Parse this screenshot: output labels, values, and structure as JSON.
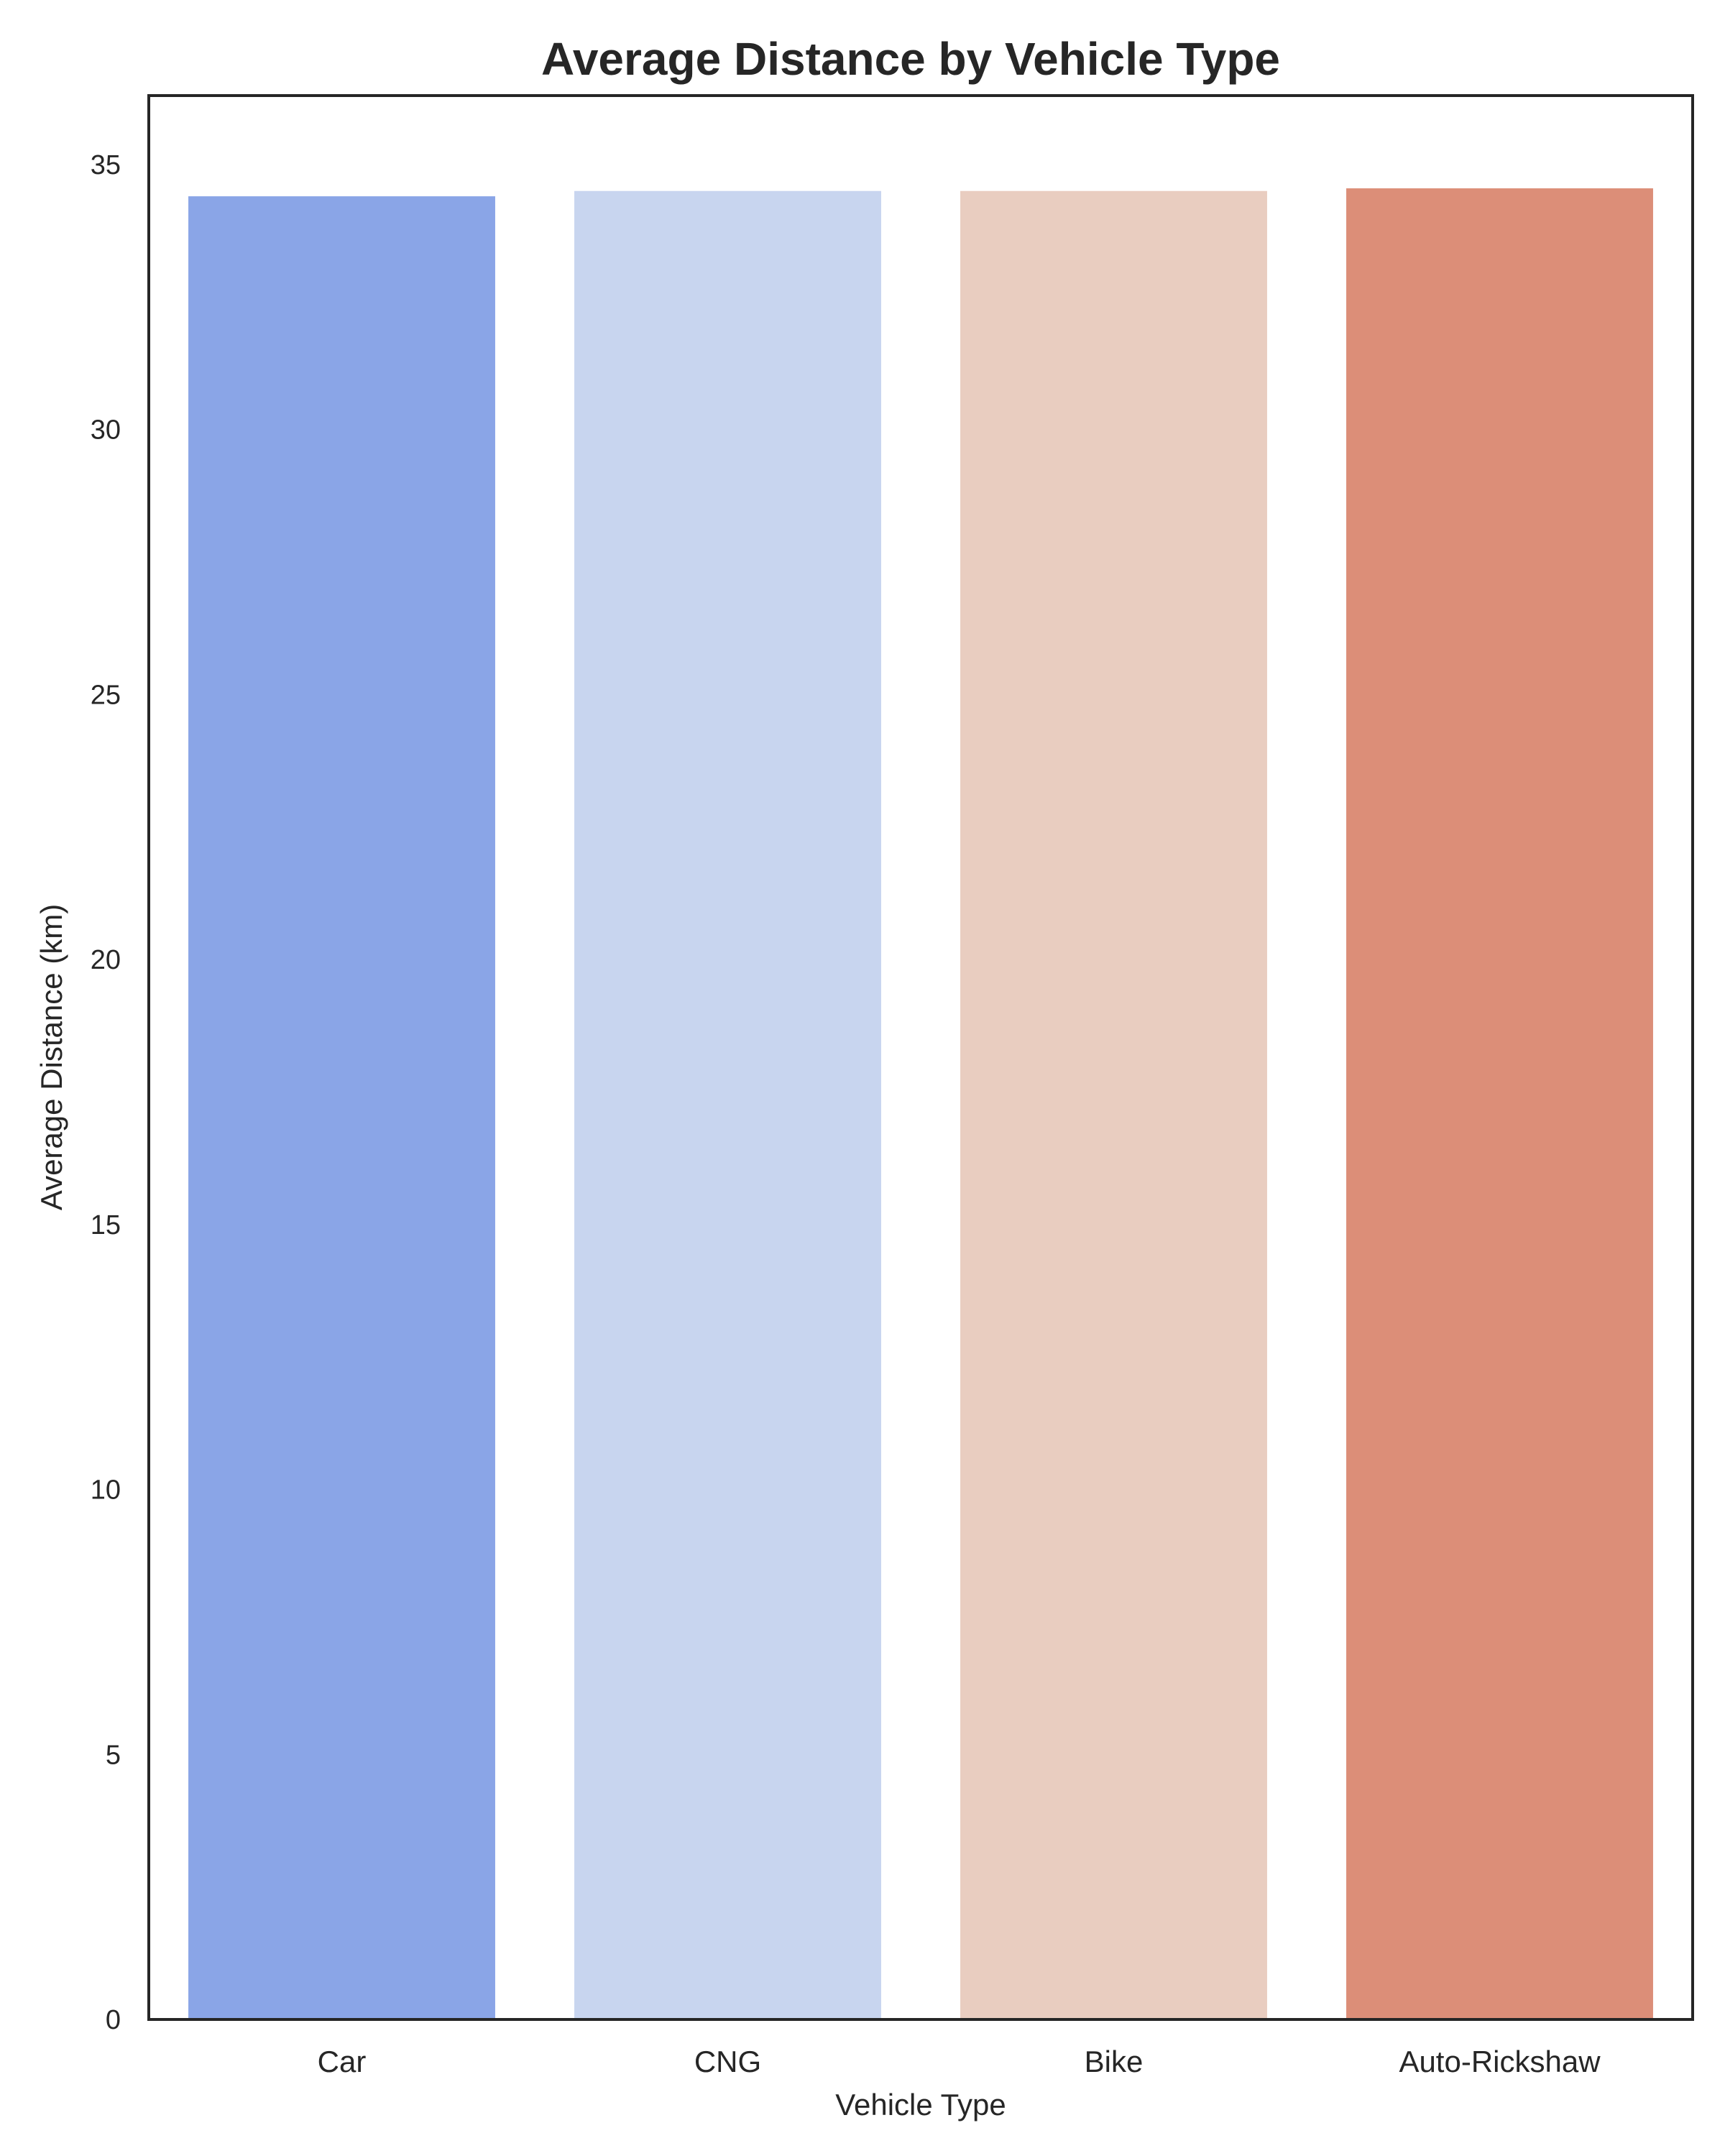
{
  "chart_data": {
    "type": "bar",
    "title": "Average Distance by Vehicle Type",
    "xlabel": "Vehicle Type",
    "ylabel": "Average Distance (km)",
    "categories": [
      "Car",
      "CNG",
      "Bike",
      "Auto-Rickshaw"
    ],
    "values": [
      34.4,
      34.5,
      34.5,
      34.55
    ],
    "ylim": [
      0,
      36.3
    ],
    "yticks": [
      0,
      5,
      10,
      15,
      20,
      25,
      30,
      35
    ],
    "colors": [
      "#8aa5e7",
      "#c8d5ef",
      "#e9cdc0",
      "#dc8e78"
    ],
    "grid": false,
    "legend": "none"
  }
}
